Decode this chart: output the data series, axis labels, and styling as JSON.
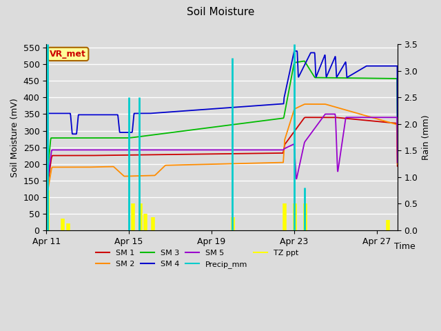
{
  "title": "Soil Moisture",
  "xlabel": "Time",
  "ylabel_left": "Soil Moisture (mV)",
  "ylabel_right": "Rain (mm)",
  "ylim_left": [
    0,
    560
  ],
  "ylim_right": [
    0,
    3.5
  ],
  "yticks_left": [
    0,
    50,
    100,
    150,
    200,
    250,
    300,
    350,
    400,
    450,
    500,
    550
  ],
  "yticks_right": [
    0.0,
    0.5,
    1.0,
    1.5,
    2.0,
    2.5,
    3.0,
    3.5
  ],
  "bg_color": "#dcdcdc",
  "grid_color": "#ffffff",
  "sm1_color": "#cc0000",
  "sm2_color": "#ff8c00",
  "sm3_color": "#00bb00",
  "sm4_color": "#0000cc",
  "sm5_color": "#9900cc",
  "precip_color": "#00cccc",
  "tzppt_color": "#ffff00",
  "xtick_positions": [
    0,
    4,
    8,
    12,
    16
  ],
  "xtick_labels": [
    "Apr 11",
    "Apr 15",
    "Apr 19",
    "Apr 23",
    "Apr 27"
  ],
  "legend_entries": [
    "SM 1",
    "SM 2",
    "SM 3",
    "SM 4",
    "SM 5",
    "Precip_mm",
    "TZ ppt"
  ],
  "vr_met_label": "VR_met"
}
